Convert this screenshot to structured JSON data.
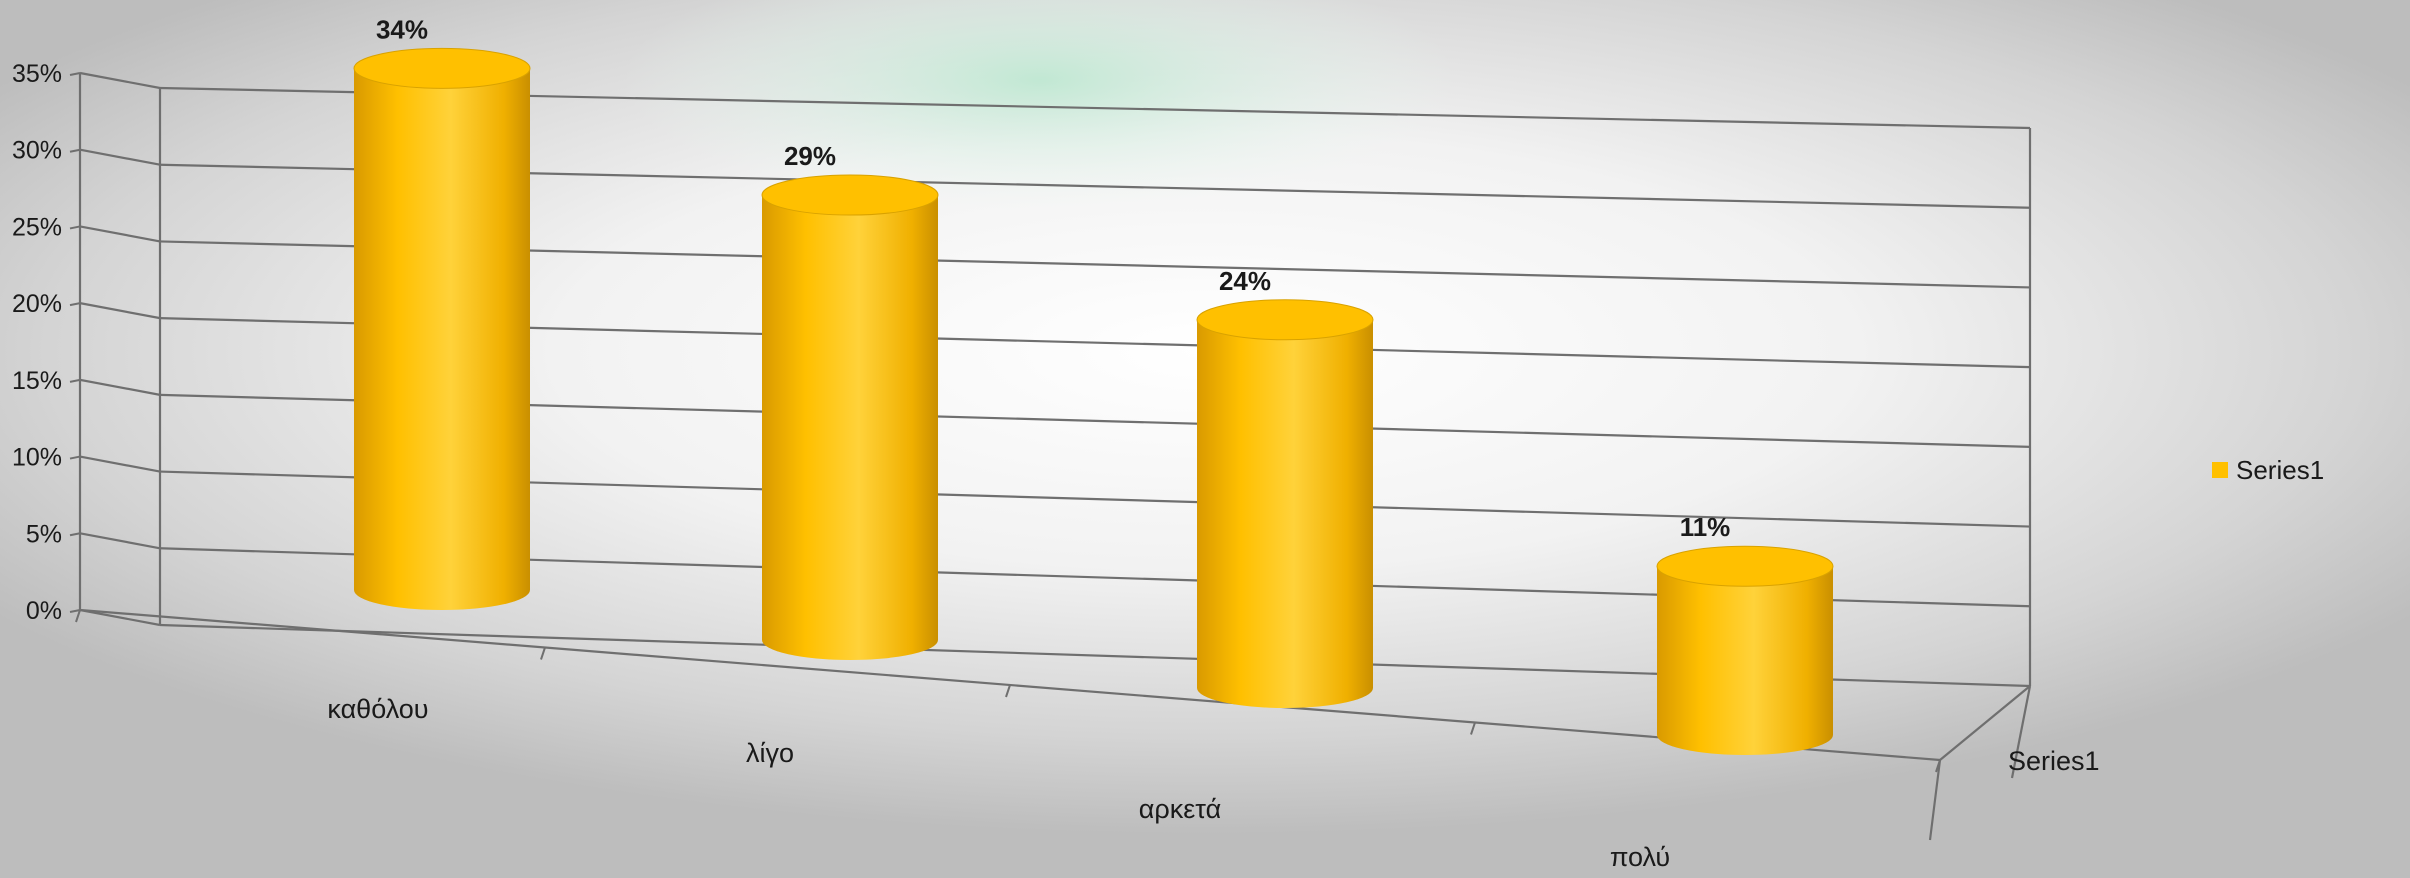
{
  "chart_data": {
    "type": "bar",
    "style": "3d-cylinder",
    "categories": [
      "καθόλου",
      "λίγο",
      "αρκετά",
      "πολύ"
    ],
    "series": [
      {
        "name": "Series1",
        "values": [
          34,
          29,
          24,
          11
        ],
        "color": "#ffc000"
      }
    ],
    "data_labels": [
      "34%",
      "29%",
      "24%",
      "11%"
    ],
    "y_ticks": [
      "0%",
      "5%",
      "10%",
      "15%",
      "20%",
      "25%",
      "30%",
      "35%"
    ],
    "ylim": [
      0,
      35
    ],
    "depth_axis_label": "Series1",
    "legend": {
      "placement": "right",
      "entries": [
        "Series1"
      ]
    },
    "grid": true,
    "title": "",
    "xlabel": "",
    "ylabel": ""
  },
  "colors": {
    "bar": "#ffc000",
    "bar_dark": "#c98f00",
    "bar_light": "#ffd84d",
    "grid": "#6f6f6f",
    "glow": "#c8ecd9"
  }
}
